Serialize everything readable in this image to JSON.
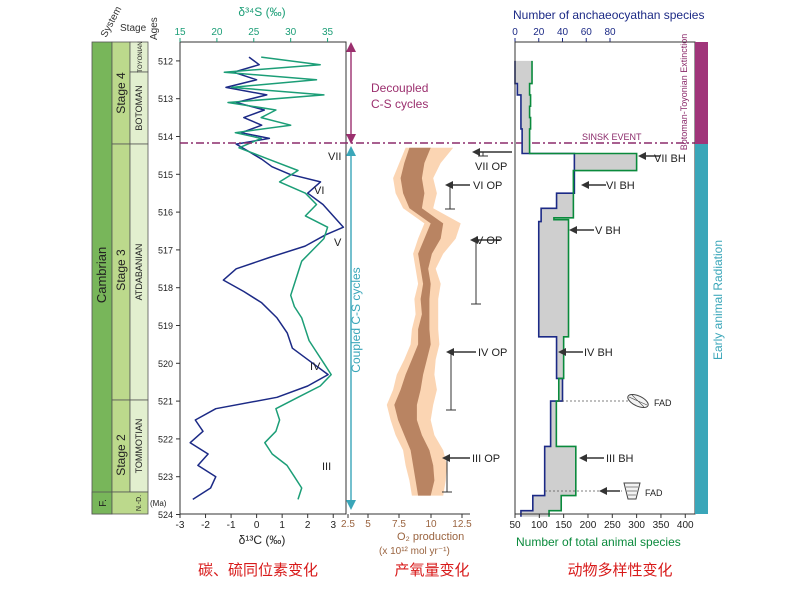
{
  "colors": {
    "carbon": "#1c2a86",
    "sulfur": "#1c9e77",
    "sulfur_label": "#1c9e77",
    "ox_outer": "#fbd5b3",
    "ox_inner": "#b98462",
    "ox_label": "#9a6440",
    "decoupled": "#9b2f6e",
    "coupled": "#3aa6b9",
    "stage_green": "#bcd98c",
    "cambrian_green": "#78b65a",
    "bar_purple": "#a0357a",
    "bar_teal": "#3aa6b9",
    "total_species": "#0a8a3c",
    "anchaeo": "#1c2a86",
    "caption_red": "#d81a1a",
    "sinsk": "#8b2b6b"
  },
  "strat": {
    "headers": {
      "system": "System",
      "stage": "Stage",
      "ages": "Ages"
    },
    "system": "Cambrian",
    "stages": [
      "Stage 4",
      "Stage 3",
      "Stage 2"
    ],
    "ages": [
      "TOYONIAN",
      "BOTOMAN",
      "ATDABANIAN",
      "TOMMOTIAN"
    ],
    "bottom": {
      "system": "F.",
      "stage": "N.-D.",
      "ma": "(Ma)"
    },
    "age_ticks": [
      512,
      513,
      514,
      515,
      516,
      517,
      518,
      519,
      520,
      521,
      522,
      523,
      524
    ]
  },
  "isotope_panel": {
    "top_axis_label": "δ³⁴S (‰)",
    "top_ticks": [
      15,
      20,
      25,
      30,
      35
    ],
    "bottom_axis_label": "δ¹³C (‰)",
    "bottom_ticks": [
      -3,
      -2,
      -1,
      0,
      1,
      2,
      3
    ],
    "roman": [
      "VII",
      "VI",
      "V",
      "IV",
      "III"
    ]
  },
  "events": {
    "decoupled": [
      "Decoupled",
      "C-S cycles"
    ],
    "coupled": "Coupled C-S cycles",
    "sinsk": "SINSK EVENT"
  },
  "oxygen_panel": {
    "axis_label": "O₂ production",
    "axis_unit": "(x 10¹² mol yr⁻¹)",
    "ticks": [
      "2.5",
      "5",
      "7.5",
      "10",
      "12.5"
    ],
    "op_labels": [
      "VII OP",
      "VI OP",
      "V OP",
      "IV OP",
      "III OP"
    ]
  },
  "diversity_panel": {
    "top_axis_label": "Number of anchaeocyathan species",
    "top_ticks": [
      0,
      20,
      40,
      60,
      80
    ],
    "bottom_axis_label": "Number of total animal species",
    "bottom_ticks": [
      50,
      100,
      150,
      200,
      250,
      300,
      350,
      400
    ],
    "bh_labels": [
      "VII BH",
      "VI BH",
      "V BH",
      "IV BH",
      "III BH"
    ],
    "fad": [
      "FAD",
      "FAD"
    ],
    "bar_labels": {
      "extinction": "Botoman-Toyonian Extinction",
      "radiation": "Early animal Radiation"
    }
  },
  "captions": [
    "碳、硫同位素变化",
    "产氧量变化",
    "动物多样性变化"
  ],
  "chart_data": [
    {
      "type": "line",
      "title": "",
      "xlabel": "δ¹³C (‰) / δ³⁴S (‰)",
      "ylabel": "Ages (Ma)",
      "ylim": [
        511.5,
        524
      ],
      "xlim_c": [
        -3,
        3.5
      ],
      "xlim_s": [
        15,
        37.5
      ],
      "series": [
        {
          "name": "δ¹³C",
          "y": [
            511.9,
            512.1,
            512.3,
            512.5,
            512.7,
            512.9,
            513.1,
            513.3,
            513.5,
            513.7,
            513.9,
            514.05,
            514.2,
            514.4,
            514.6,
            514.8,
            515.0,
            515.2,
            515.5,
            515.8,
            516.1,
            516.4,
            516.6,
            516.9,
            517.2,
            517.5,
            517.8,
            518.1,
            518.4,
            518.8,
            519.2,
            519.6,
            520.0,
            520.3,
            520.6,
            520.9,
            521.2,
            521.5,
            521.8,
            522.1,
            522.4,
            522.7,
            523.0,
            523.3,
            523.6
          ],
          "values": [
            -0.3,
            0.1,
            -0.9,
            0.0,
            -1.2,
            0.4,
            -0.8,
            0.3,
            -0.5,
            0.2,
            -0.6,
            0.5,
            -0.8,
            -0.3,
            0.2,
            0.6,
            1.3,
            2.5,
            2.0,
            2.6,
            3.0,
            3.4,
            2.7,
            1.9,
            0.5,
            -0.8,
            -1.3,
            -0.5,
            0.2,
            0.8,
            1.2,
            1.4,
            2.2,
            2.8,
            2.0,
            0.8,
            -1.6,
            -2.4,
            -2.1,
            -2.6,
            -1.9,
            -2.3,
            -1.6,
            -1.8,
            -2.5
          ]
        },
        {
          "name": "δ³⁴S",
          "y": [
            511.9,
            512.1,
            512.3,
            512.5,
            512.7,
            512.9,
            513.1,
            513.3,
            513.5,
            513.7,
            513.9,
            514.05,
            514.3,
            514.6,
            514.9,
            515.2,
            515.5,
            515.8,
            516.1,
            516.4,
            516.7,
            517.0,
            517.3,
            517.6,
            517.9,
            518.2,
            518.5,
            518.8,
            519.1,
            519.4,
            519.7,
            520.0,
            520.3,
            520.6,
            520.9,
            521.2,
            521.5,
            521.8,
            522.1,
            522.4,
            522.7,
            523.0,
            523.3,
            523.6
          ],
          "values": [
            26.0,
            34.0,
            21.0,
            33.5,
            22.0,
            34.5,
            21.5,
            28.0,
            26.0,
            30.0,
            22.5,
            26.0,
            23.0,
            27.0,
            31.0,
            28.5,
            32.0,
            33.5,
            32.0,
            35.0,
            34.5,
            33.0,
            31.5,
            31.0,
            30.5,
            30.0,
            30.5,
            31.5,
            32.0,
            32.5,
            33.5,
            34.5,
            35.5,
            34.0,
            31.0,
            28.0,
            28.5,
            28.0,
            26.5,
            27.5,
            29.5,
            30.5,
            31.5,
            31.0
          ]
        }
      ]
    },
    {
      "type": "area",
      "title": "",
      "xlabel": "O₂ production (x 10¹² mol yr⁻¹)",
      "ylabel": "Ages (Ma)",
      "xlim": [
        2.5,
        12.5
      ],
      "y": [
        514.3,
        514.7,
        515.1,
        515.5,
        515.9,
        516.3,
        516.7,
        517.1,
        517.5,
        517.9,
        518.3,
        518.7,
        519.1,
        519.5,
        519.9,
        520.3,
        520.7,
        521.1,
        521.5,
        521.9,
        522.3,
        522.7,
        523.1,
        523.5
      ],
      "outer_low": [
        8.0,
        7.5,
        7.0,
        7.2,
        7.8,
        9.5,
        9.0,
        8.6,
        8.8,
        9.0,
        8.7,
        8.8,
        8.5,
        8.4,
        7.9,
        7.3,
        7.0,
        6.5,
        6.8,
        7.2,
        7.8,
        8.0,
        8.3,
        8.5
      ],
      "outer_high": [
        11.8,
        10.8,
        10.2,
        10.5,
        10.2,
        12.4,
        12.0,
        11.0,
        10.4,
        10.8,
        10.6,
        10.6,
        10.6,
        10.7,
        10.4,
        10.3,
        10.5,
        10.2,
        10.0,
        10.3,
        11.0,
        11.3,
        11.2,
        11.0
      ],
      "inner_low": [
        8.3,
        7.9,
        7.6,
        7.8,
        8.3,
        10.0,
        9.5,
        9.0,
        9.2,
        9.4,
        9.2,
        9.3,
        9.0,
        9.0,
        8.5,
        8.0,
        7.6,
        7.1,
        7.4,
        7.9,
        8.4,
        8.6,
        8.8,
        9.0
      ],
      "inner_high": [
        10.0,
        9.5,
        9.3,
        9.5,
        9.3,
        11.0,
        10.8,
        10.1,
        9.8,
        10.0,
        9.9,
        9.9,
        9.9,
        10.0,
        9.7,
        9.4,
        9.2,
        8.9,
        8.9,
        9.3,
        9.9,
        10.2,
        10.3,
        10.0
      ]
    },
    {
      "type": "area",
      "title": "",
      "xlabel": "Number of total animal species",
      "ylabel": "Ages (Ma)",
      "xlim": [
        50,
        420
      ],
      "series": [
        {
          "name": "Number of total animal species",
          "y": [
            512.0,
            512.3,
            512.6,
            512.9,
            513.2,
            513.5,
            513.8,
            514.2,
            514.45,
            514.9,
            515.9,
            516.15,
            516.2,
            519.3,
            520.4,
            521.0,
            522.2,
            523.5,
            523.9
          ],
          "values": [
            85,
            85,
            80,
            82,
            80,
            82,
            80,
            80,
            300,
            170,
            170,
            130,
            160,
            150,
            140,
            135,
            175,
            145,
            120
          ]
        },
        {
          "name": "Number of anchaeocyathan species",
          "y": [
            512.0,
            512.3,
            512.6,
            512.9,
            513.2,
            513.5,
            513.8,
            514.2,
            514.45,
            515.5,
            515.9,
            516.25,
            519.3,
            520.4,
            521.0,
            522.2,
            523.5,
            523.9
          ],
          "values": [
            0,
            0,
            2,
            5,
            5,
            5,
            6,
            6,
            50,
            35,
            22,
            20,
            35,
            40,
            30,
            25,
            15,
            5
          ]
        }
      ]
    }
  ]
}
